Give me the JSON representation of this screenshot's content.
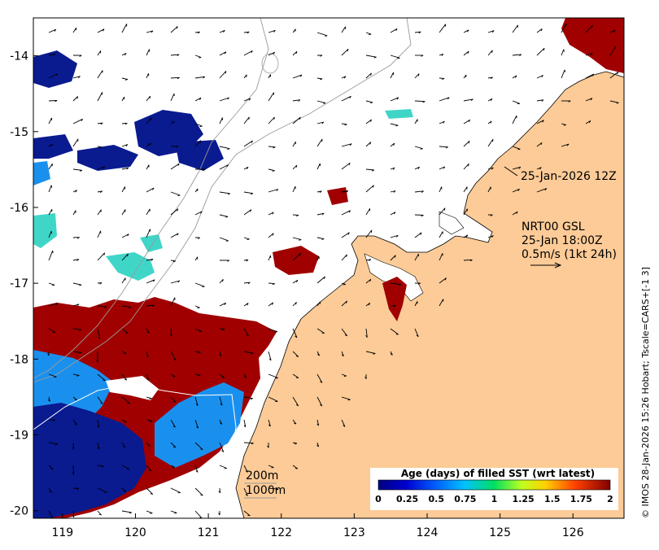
{
  "map": {
    "x_ticks": [
      "119",
      "120",
      "121",
      "122",
      "123",
      "124",
      "125",
      "126"
    ],
    "y_ticks": [
      "-14",
      "-15",
      "-16",
      "-17",
      "-18",
      "-19",
      "-20"
    ],
    "lon_range": [
      118.6,
      126.7
    ],
    "lat_range": [
      -13.5,
      -20.1
    ]
  },
  "annotations": {
    "timestamp_label": "25-Jan-2026 12Z",
    "product": "NRT00 GSL",
    "product_time": "25-Jan 18:00Z",
    "scale": "0.5m/s (1kt 24h)",
    "depth_200": "200m",
    "depth_1000": "1000m"
  },
  "colorbar": {
    "title": "Age (days) of filled SST (wrt latest)",
    "ticks": [
      "0",
      "0.25",
      "0.5",
      "0.75",
      "1",
      "1.25",
      "1.5",
      "1.75",
      "2"
    ],
    "range": [
      0,
      2
    ]
  },
  "side_text": "© IMOS 28-Jan-2026 15:26 Hobart; Tscale=CARS+[-1 3]",
  "colors": {
    "land": "#fccb97",
    "age_recent": "#0a1a8f",
    "age_mid": "#18a0f0",
    "age_cyan": "#3fd6c8",
    "age_old": "#a00000"
  }
}
